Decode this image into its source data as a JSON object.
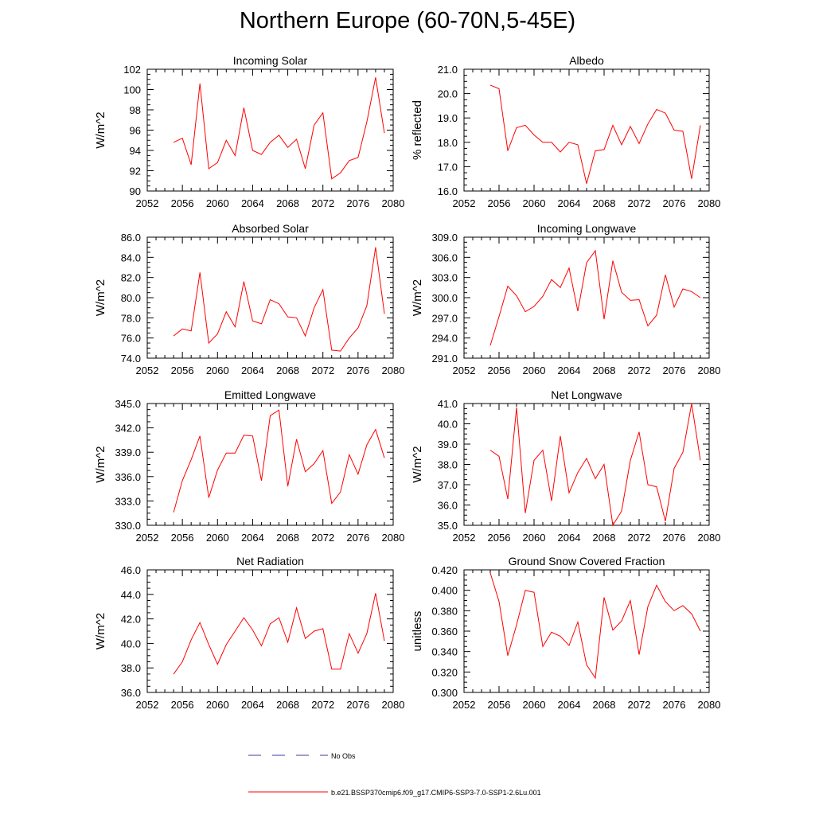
{
  "title": "Northern Europe (60-70N,5-45E)",
  "legend": [
    {
      "label": "No Obs",
      "color": "#3a3aa8",
      "style": "dashed"
    },
    {
      "label": "b.e21.BSSP370cmip6.f09_g17.CMIP6-SSP3-7.0-SSP1-2.6Lu.001",
      "color": "#ff0000",
      "style": "solid"
    }
  ],
  "chart_data": [
    {
      "type": "line",
      "title": "Incoming Solar",
      "xlabel": "",
      "ylabel": "W/m^2",
      "xlim": [
        2052,
        2080
      ],
      "xticks": [
        "2052",
        "2056",
        "2060",
        "2064",
        "2068",
        "2072",
        "2076",
        "2080"
      ],
      "ylim": [
        90,
        102
      ],
      "yticks": [
        "90",
        "92",
        "94",
        "96",
        "98",
        "100",
        "102"
      ],
      "x": [
        2055,
        2056,
        2057,
        2058,
        2059,
        2060,
        2061,
        2062,
        2063,
        2064,
        2065,
        2066,
        2067,
        2068,
        2069,
        2070,
        2071,
        2072,
        2073,
        2074,
        2075,
        2076,
        2077,
        2078,
        2079
      ],
      "series": [
        {
          "name": "b.e21.BSSP370cmip6.f09_g17.CMIP6-SSP3-7.0-SSP1-2.6Lu.001",
          "color": "#ff0000",
          "values": [
            94.8,
            95.2,
            92.6,
            100.6,
            92.2,
            92.8,
            95.0,
            93.5,
            98.2,
            94.0,
            93.6,
            94.8,
            95.5,
            94.3,
            95.1,
            92.2,
            96.5,
            97.7,
            91.2,
            91.8,
            93.0,
            93.3,
            96.8,
            101.2,
            95.7
          ]
        }
      ]
    },
    {
      "type": "line",
      "title": "Albedo",
      "xlabel": "",
      "ylabel": "% reflected",
      "xlim": [
        2052,
        2080
      ],
      "xticks": [
        "2052",
        "2056",
        "2060",
        "2064",
        "2068",
        "2072",
        "2076",
        "2080"
      ],
      "ylim": [
        16.0,
        21.0
      ],
      "yticks": [
        "16.0",
        "17.0",
        "18.0",
        "19.0",
        "20.0",
        "21.0"
      ],
      "x": [
        2055,
        2056,
        2057,
        2058,
        2059,
        2060,
        2061,
        2062,
        2063,
        2064,
        2065,
        2066,
        2067,
        2068,
        2069,
        2070,
        2071,
        2072,
        2073,
        2074,
        2075,
        2076,
        2077,
        2078,
        2079
      ],
      "series": [
        {
          "name": "b.e21.BSSP370cmip6.f09_g17.CMIP6-SSP3-7.0-SSP1-2.6Lu.001",
          "color": "#ff0000",
          "values": [
            20.35,
            20.2,
            17.65,
            18.6,
            18.7,
            18.3,
            18.0,
            18.0,
            17.6,
            18.0,
            17.9,
            16.3,
            17.65,
            17.7,
            18.7,
            17.9,
            18.65,
            17.95,
            18.75,
            19.35,
            19.2,
            18.5,
            18.45,
            16.5,
            18.7
          ]
        }
      ]
    },
    {
      "type": "line",
      "title": "Absorbed Solar",
      "xlabel": "",
      "ylabel": "W/m^2",
      "xlim": [
        2052,
        2080
      ],
      "xticks": [
        "2052",
        "2056",
        "2060",
        "2064",
        "2068",
        "2072",
        "2076",
        "2080"
      ],
      "ylim": [
        74.0,
        86.0
      ],
      "yticks": [
        "74.0",
        "76.0",
        "78.0",
        "80.0",
        "82.0",
        "84.0",
        "86.0"
      ],
      "x": [
        2055,
        2056,
        2057,
        2058,
        2059,
        2060,
        2061,
        2062,
        2063,
        2064,
        2065,
        2066,
        2067,
        2068,
        2069,
        2070,
        2071,
        2072,
        2073,
        2074,
        2075,
        2076,
        2077,
        2078,
        2079
      ],
      "series": [
        {
          "name": "b.e21.BSSP370cmip6.f09_g17.CMIP6-SSP3-7.0-SSP1-2.6Lu.001",
          "color": "#ff0000",
          "values": [
            76.2,
            76.9,
            76.7,
            82.5,
            75.5,
            76.4,
            78.6,
            77.1,
            81.6,
            77.7,
            77.4,
            79.8,
            79.4,
            78.1,
            78.0,
            76.2,
            79.0,
            80.8,
            74.8,
            74.7,
            76.0,
            77.0,
            79.2,
            85.0,
            78.4
          ]
        }
      ]
    },
    {
      "type": "line",
      "title": "Incoming Longwave",
      "xlabel": "",
      "ylabel": "W/m^2",
      "xlim": [
        2052,
        2080
      ],
      "xticks": [
        "2052",
        "2056",
        "2060",
        "2064",
        "2068",
        "2072",
        "2076",
        "2080"
      ],
      "ylim": [
        291.0,
        309.0
      ],
      "yticks": [
        "291.0",
        "294.0",
        "297.0",
        "300.0",
        "303.0",
        "306.0",
        "309.0"
      ],
      "x": [
        2055,
        2056,
        2057,
        2058,
        2059,
        2060,
        2061,
        2062,
        2063,
        2064,
        2065,
        2066,
        2067,
        2068,
        2069,
        2070,
        2071,
        2072,
        2073,
        2074,
        2075,
        2076,
        2077,
        2078,
        2079
      ],
      "series": [
        {
          "name": "b.e21.BSSP370cmip6.f09_g17.CMIP6-SSP3-7.0-SSP1-2.6Lu.001",
          "color": "#ff0000",
          "values": [
            292.9,
            297.2,
            301.7,
            300.3,
            297.9,
            298.7,
            300.2,
            302.7,
            301.5,
            304.4,
            298.0,
            305.2,
            307.0,
            296.8,
            305.5,
            300.8,
            299.6,
            299.7,
            295.8,
            297.4,
            303.4,
            298.6,
            301.3,
            300.9,
            300.0
          ]
        }
      ]
    },
    {
      "type": "line",
      "title": "Emitted Longwave",
      "xlabel": "",
      "ylabel": "W/m^2",
      "xlim": [
        2052,
        2080
      ],
      "xticks": [
        "2052",
        "2056",
        "2060",
        "2064",
        "2068",
        "2072",
        "2076",
        "2080"
      ],
      "ylim": [
        330.0,
        345.0
      ],
      "yticks": [
        "330.0",
        "333.0",
        "336.0",
        "339.0",
        "342.0",
        "345.0"
      ],
      "x": [
        2055,
        2056,
        2057,
        2058,
        2059,
        2060,
        2061,
        2062,
        2063,
        2064,
        2065,
        2066,
        2067,
        2068,
        2069,
        2070,
        2071,
        2072,
        2073,
        2074,
        2075,
        2076,
        2077,
        2078,
        2079
      ],
      "series": [
        {
          "name": "b.e21.BSSP370cmip6.f09_g17.CMIP6-SSP3-7.0-SSP1-2.6Lu.001",
          "color": "#ff0000",
          "values": [
            331.6,
            335.5,
            338.1,
            341.0,
            333.4,
            336.8,
            338.9,
            338.9,
            341.1,
            341.0,
            335.5,
            343.5,
            344.2,
            334.8,
            340.6,
            336.6,
            337.6,
            339.2,
            332.7,
            334.1,
            338.7,
            336.3,
            339.9,
            341.8,
            338.3
          ]
        }
      ]
    },
    {
      "type": "line",
      "title": "Net Longwave",
      "xlabel": "",
      "ylabel": "W/m^2",
      "xlim": [
        2052,
        2080
      ],
      "xticks": [
        "2052",
        "2056",
        "2060",
        "2064",
        "2068",
        "2072",
        "2076",
        "2080"
      ],
      "ylim": [
        35.0,
        41.0
      ],
      "yticks": [
        "35.0",
        "36.0",
        "37.0",
        "38.0",
        "39.0",
        "40.0",
        "41.0"
      ],
      "x": [
        2055,
        2056,
        2057,
        2058,
        2059,
        2060,
        2061,
        2062,
        2063,
        2064,
        2065,
        2066,
        2067,
        2068,
        2069,
        2070,
        2071,
        2072,
        2073,
        2074,
        2075,
        2076,
        2077,
        2078,
        2079
      ],
      "series": [
        {
          "name": "b.e21.BSSP370cmip6.f09_g17.CMIP6-SSP3-7.0-SSP1-2.6Lu.001",
          "color": "#ff0000",
          "values": [
            38.7,
            38.4,
            36.3,
            40.8,
            35.6,
            38.2,
            38.7,
            36.2,
            39.4,
            36.6,
            37.6,
            38.3,
            37.3,
            38.0,
            35.0,
            35.7,
            38.2,
            39.6,
            37.0,
            36.9,
            35.2,
            37.8,
            38.6,
            41.0,
            38.2
          ]
        }
      ]
    },
    {
      "type": "line",
      "title": "Net Radiation",
      "xlabel": "",
      "ylabel": "W/m^2",
      "xlim": [
        2052,
        2080
      ],
      "xticks": [
        "2052",
        "2056",
        "2060",
        "2064",
        "2068",
        "2072",
        "2076",
        "2080"
      ],
      "ylim": [
        36.0,
        46.0
      ],
      "yticks": [
        "36.0",
        "38.0",
        "40.0",
        "42.0",
        "44.0",
        "46.0"
      ],
      "x": [
        2055,
        2056,
        2057,
        2058,
        2059,
        2060,
        2061,
        2062,
        2063,
        2064,
        2065,
        2066,
        2067,
        2068,
        2069,
        2070,
        2071,
        2072,
        2073,
        2074,
        2075,
        2076,
        2077,
        2078,
        2079
      ],
      "series": [
        {
          "name": "b.e21.BSSP370cmip6.f09_g17.CMIP6-SSP3-7.0-SSP1-2.6Lu.001",
          "color": "#ff0000",
          "values": [
            37.5,
            38.5,
            40.3,
            41.7,
            39.9,
            38.3,
            39.9,
            41.0,
            42.1,
            41.1,
            39.8,
            41.6,
            42.1,
            40.1,
            42.9,
            40.4,
            41.0,
            41.2,
            37.9,
            37.9,
            40.8,
            39.2,
            40.8,
            44.1,
            40.2
          ]
        }
      ]
    },
    {
      "type": "line",
      "title": "Ground Snow Covered Fraction",
      "xlabel": "",
      "ylabel": "unitless",
      "xlim": [
        2052,
        2080
      ],
      "xticks": [
        "2052",
        "2056",
        "2060",
        "2064",
        "2068",
        "2072",
        "2076",
        "2080"
      ],
      "ylim": [
        0.3,
        0.42
      ],
      "yticks": [
        "0.300",
        "0.320",
        "0.340",
        "0.360",
        "0.380",
        "0.400",
        "0.420"
      ],
      "x": [
        2055,
        2056,
        2057,
        2058,
        2059,
        2060,
        2061,
        2062,
        2063,
        2064,
        2065,
        2066,
        2067,
        2068,
        2069,
        2070,
        2071,
        2072,
        2073,
        2074,
        2075,
        2076,
        2077,
        2078,
        2079
      ],
      "series": [
        {
          "name": "b.e21.BSSP370cmip6.f09_g17.CMIP6-SSP3-7.0-SSP1-2.6Lu.001",
          "color": "#ff0000",
          "values": [
            0.417,
            0.389,
            0.336,
            0.366,
            0.4,
            0.398,
            0.345,
            0.359,
            0.355,
            0.346,
            0.369,
            0.327,
            0.314,
            0.393,
            0.361,
            0.37,
            0.39,
            0.337,
            0.384,
            0.405,
            0.389,
            0.38,
            0.385,
            0.377,
            0.36
          ]
        }
      ]
    }
  ]
}
